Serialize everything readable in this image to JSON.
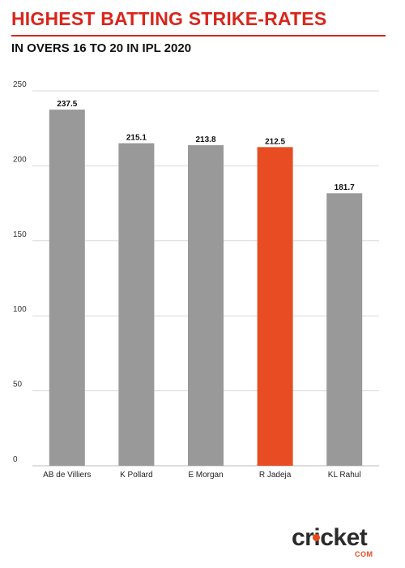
{
  "header": {
    "title": "HIGHEST BATTING STRIKE-RATES",
    "subtitle": "IN OVERS 16 TO 20 IN IPL 2020"
  },
  "brand": {
    "logo_text": "cricket",
    "logo_suffix": "COM",
    "accent_color": "#e8491d"
  },
  "colors": {
    "title": "#d9261c",
    "bar_default": "#999999",
    "bar_highlight": "#e84c22",
    "grid": "#d9d9d9"
  },
  "chart_data": {
    "type": "bar",
    "title": "HIGHEST BATTING STRIKE-RATES",
    "subtitle": "IN OVERS 16 TO 20 IN IPL 2020",
    "categories": [
      "AB de Villiers",
      "K Pollard",
      "E Morgan",
      "R Jadeja",
      "KL Rahul"
    ],
    "values": [
      237.5,
      215.1,
      213.8,
      212.5,
      181.7
    ],
    "data_labels": [
      "237.5",
      "215.1",
      "213.8",
      "212.5",
      "181.7"
    ],
    "highlight_index": 3,
    "ylim": [
      0,
      250
    ],
    "yticks": [
      0,
      50,
      100,
      150,
      200,
      250
    ],
    "xlabel": "",
    "ylabel": "",
    "grid": true,
    "legend": "none"
  }
}
